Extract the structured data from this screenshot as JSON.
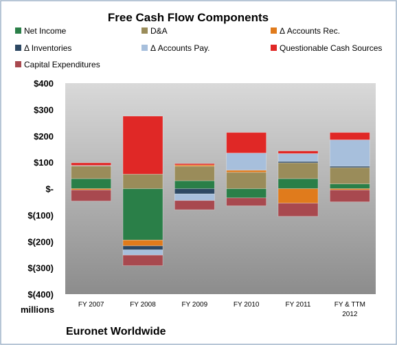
{
  "chart_data": {
    "type": "bar",
    "stacked": true,
    "title": "Free Cash Flow Components",
    "footer": "Euronet Worldwide",
    "units_label": "millions",
    "categories": [
      "FY 2007",
      "FY 2008",
      "FY 2009",
      "FY 2010",
      "FY 2011",
      "FY & TTM 2012"
    ],
    "category_lines": [
      [
        "FY 2007"
      ],
      [
        "FY 2008"
      ],
      [
        "FY 2009"
      ],
      [
        "FY 2010"
      ],
      [
        "FY 2011"
      ],
      [
        "FY & TTM",
        "2012"
      ]
    ],
    "y_ticks": [
      {
        "value": 400,
        "label": "$400"
      },
      {
        "value": 300,
        "label": "$300"
      },
      {
        "value": 200,
        "label": "$200"
      },
      {
        "value": 100,
        "label": "$100"
      },
      {
        "value": 0,
        "label": "$-"
      },
      {
        "value": -100,
        "label": "$(100)"
      },
      {
        "value": -200,
        "label": "$(200)"
      },
      {
        "value": -300,
        "label": "$(300)"
      },
      {
        "value": -400,
        "label": "$(400)"
      }
    ],
    "ylim": [
      -400,
      400
    ],
    "grid": false,
    "legend_position": "top",
    "series": [
      {
        "name": "Net Income",
        "color": "#2a7f48",
        "values": [
          38,
          -195,
          30,
          -35,
          38,
          18
        ]
      },
      {
        "name": "D&A",
        "color": "#9a8c5a",
        "values": [
          48,
          55,
          55,
          62,
          60,
          62
        ]
      },
      {
        "name": "Δ Accounts Rec.",
        "color": "#e07b1c",
        "values": [
          -5,
          -22,
          5,
          8,
          -55,
          -5
        ]
      },
      {
        "name": "Δ Inventories",
        "color": "#2d4863",
        "values": [
          0,
          -15,
          -20,
          0,
          5,
          5
        ]
      },
      {
        "name": "Δ Accounts Pay.",
        "color": "#a7bfdc",
        "values": [
          2,
          -20,
          -25,
          65,
          30,
          100
        ]
      },
      {
        "name": "Questionable Cash Sources",
        "color": "#e02826",
        "values": [
          10,
          220,
          5,
          78,
          10,
          28
        ]
      },
      {
        "name": "Capital Expenditures",
        "color": "#a8494f",
        "values": [
          -42,
          -40,
          -35,
          -30,
          -50,
          -45
        ]
      }
    ]
  }
}
